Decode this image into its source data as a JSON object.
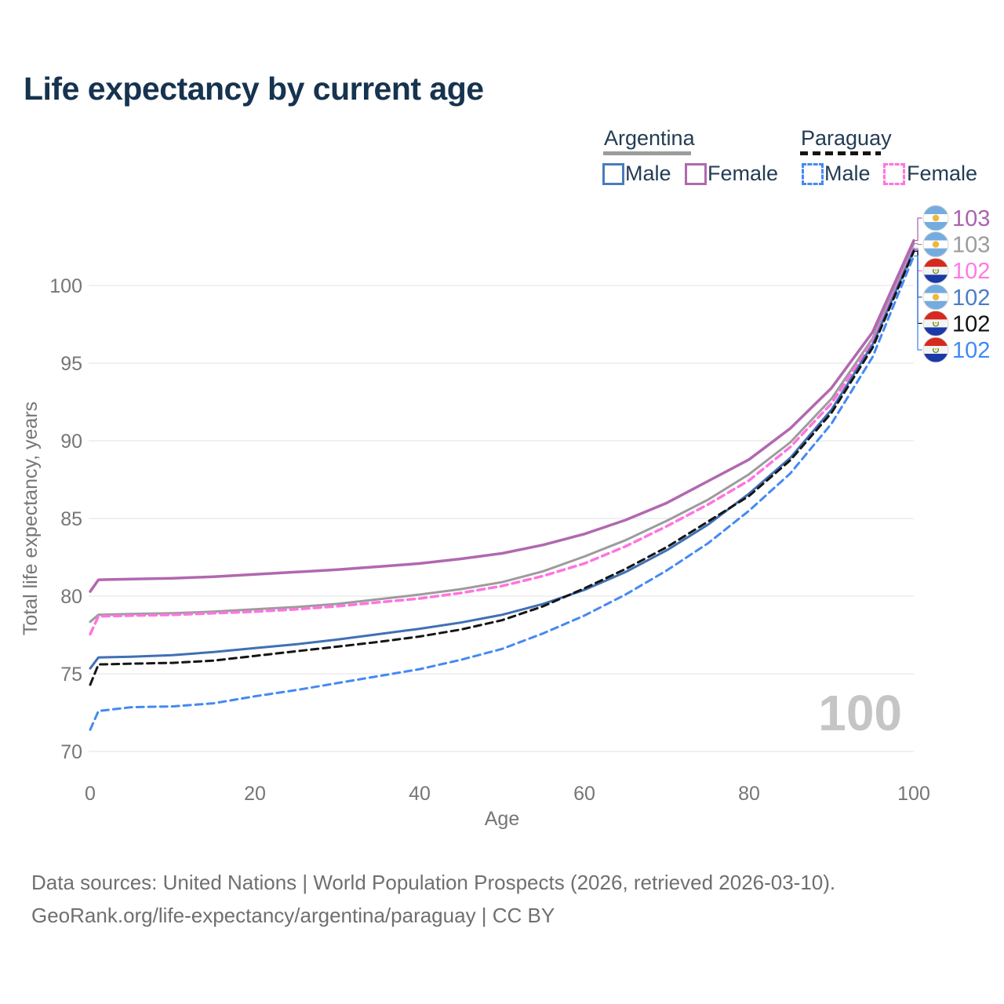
{
  "title": "Life expectancy by current age",
  "legend": {
    "groups": [
      {
        "label": "Argentina",
        "line_style": "solid",
        "line_color": "#9c9c9c",
        "items": [
          {
            "label": "Male",
            "color": "#4a7bbd"
          },
          {
            "label": "Female",
            "color": "#b168af"
          }
        ]
      },
      {
        "label": "Paraguay",
        "line_style": "dashed",
        "line_color": "#141414",
        "items": [
          {
            "label": "Male",
            "color": "#4589f3"
          },
          {
            "label": "Female",
            "color": "#ff74e0"
          }
        ]
      }
    ]
  },
  "watermark_age": "100",
  "footer": {
    "line1": "Data sources: United Nations | World Population Prospects (2026, retrieved 2026-03-10).",
    "line2": "GeoRank.org/life-expectancy/argentina/paraguay | CC BY"
  },
  "chart_data": {
    "type": "line",
    "xlabel": "Age",
    "ylabel": "Total life expectancy, years",
    "xlim": [
      0,
      100
    ],
    "ylim": [
      70,
      100
    ],
    "x_ticks": [
      0,
      20,
      40,
      60,
      80,
      100
    ],
    "y_ticks": [
      70,
      75,
      80,
      85,
      90,
      95,
      100
    ],
    "grid": "horizontal",
    "x": [
      0,
      1,
      5,
      10,
      15,
      20,
      25,
      30,
      35,
      40,
      45,
      50,
      55,
      60,
      65,
      70,
      75,
      80,
      85,
      90,
      95,
      100
    ],
    "series": [
      {
        "id": "argentina-total",
        "name": "Argentina (both sexes)",
        "country": "argentina",
        "dash": "solid",
        "color": "#9c9c9c",
        "width": 3,
        "row": 1,
        "end_label": "103",
        "label_color": "#9c9c9c",
        "values": [
          78.35,
          78.8,
          78.85,
          78.9,
          79.0,
          79.15,
          79.3,
          79.5,
          79.8,
          80.1,
          80.45,
          80.9,
          81.6,
          82.55,
          83.6,
          84.85,
          86.2,
          87.85,
          89.9,
          92.7,
          96.6,
          102.7
        ]
      },
      {
        "id": "argentina-female",
        "name": "Argentina Female",
        "country": "argentina",
        "dash": "solid",
        "color": "#b168af",
        "width": 3.5,
        "row": 0,
        "end_label": "103",
        "label_color": "#a963ae",
        "values": [
          80.3,
          81.05,
          81.1,
          81.15,
          81.25,
          81.4,
          81.55,
          81.7,
          81.9,
          82.1,
          82.4,
          82.75,
          83.3,
          84.0,
          84.9,
          86.0,
          87.4,
          88.8,
          90.8,
          93.4,
          97.0,
          102.9
        ]
      },
      {
        "id": "paraguay-female",
        "name": "Paraguay Female",
        "country": "paraguay",
        "dash": "dashed",
        "color": "#ff74e0",
        "width": 3.5,
        "row": 2,
        "end_label": "102",
        "label_color": "#ff7ae4",
        "values": [
          77.55,
          78.7,
          78.75,
          78.8,
          78.9,
          79.0,
          79.15,
          79.35,
          79.6,
          79.85,
          80.2,
          80.65,
          81.3,
          82.1,
          83.2,
          84.5,
          85.9,
          87.45,
          89.6,
          92.4,
          96.4,
          102.4
        ]
      },
      {
        "id": "argentina-male",
        "name": "Argentina Male",
        "country": "argentina",
        "dash": "solid",
        "color": "#3f70b4",
        "width": 3,
        "row": 3,
        "end_label": "102",
        "label_color": "#4b7cc7",
        "values": [
          75.35,
          76.05,
          76.1,
          76.2,
          76.4,
          76.65,
          76.9,
          77.2,
          77.55,
          77.9,
          78.3,
          78.8,
          79.5,
          80.4,
          81.55,
          82.95,
          84.6,
          86.6,
          88.9,
          92.0,
          96.2,
          102.3
        ]
      },
      {
        "id": "paraguay-total",
        "name": "Paraguay (both sexes)",
        "country": "paraguay",
        "dash": "dashed",
        "color": "#151515",
        "width": 3,
        "row": 4,
        "end_label": "102",
        "label_color": "#111111",
        "values": [
          74.3,
          75.6,
          75.65,
          75.7,
          75.85,
          76.15,
          76.45,
          76.75,
          77.05,
          77.4,
          77.85,
          78.45,
          79.35,
          80.5,
          81.75,
          83.15,
          84.8,
          86.45,
          88.75,
          91.8,
          96.0,
          102.2
        ]
      },
      {
        "id": "paraguay-male",
        "name": "Paraguay Male",
        "country": "paraguay",
        "dash": "dashed",
        "color": "#4589f3",
        "width": 3,
        "row": 5,
        "end_label": "102",
        "label_color": "#4189f5",
        "values": [
          71.4,
          72.6,
          72.85,
          72.9,
          73.1,
          73.55,
          73.95,
          74.4,
          74.85,
          75.3,
          75.9,
          76.6,
          77.6,
          78.75,
          80.1,
          81.65,
          83.4,
          85.5,
          87.9,
          91.1,
          95.4,
          101.9
        ]
      }
    ],
    "flag_colors": {
      "argentina": {
        "band": "#74acdf",
        "middle": "#ffffff",
        "sun": "#f2b63a"
      },
      "paraguay": {
        "top": "#d62a1e",
        "middle": "#f4f4f4",
        "bottom": "#1c39a8",
        "wreath": "#5c8727",
        "star": "#e0ac2c"
      }
    }
  }
}
